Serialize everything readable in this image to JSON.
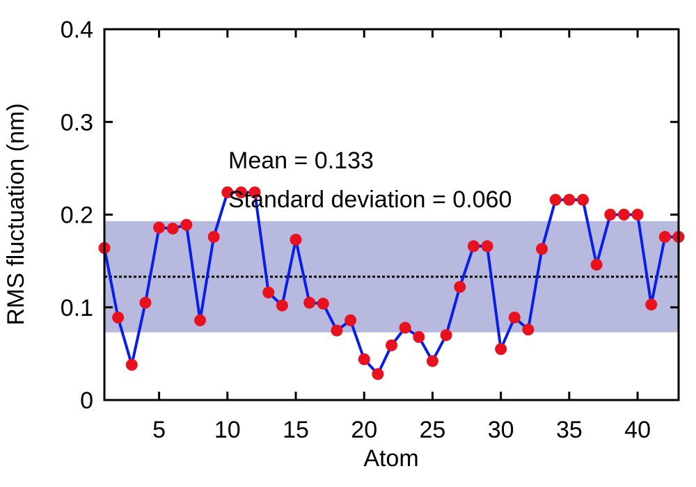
{
  "chart_data": {
    "type": "line",
    "title": "",
    "xlabel": "Atom",
    "ylabel": "RMS fluctuation (nm)",
    "xlim": [
      1,
      43
    ],
    "ylim": [
      0,
      0.4
    ],
    "x_ticks": [
      5,
      10,
      15,
      20,
      25,
      30,
      35,
      40
    ],
    "y_ticks": [
      0,
      0.1,
      0.2,
      0.3,
      0.4
    ],
    "y_tick_labels": [
      "0",
      "0.1",
      "0.2",
      "0.3",
      "0.4"
    ],
    "grid": false,
    "annotations": [
      "Mean = 0.133",
      "Standard deviation = 0.060"
    ],
    "mean": 0.133,
    "std_band": [
      0.073,
      0.193
    ],
    "series": [
      {
        "x": [
          1,
          2,
          3,
          4,
          5,
          6,
          7,
          8,
          9,
          10,
          11,
          12,
          13,
          14,
          15,
          16,
          17,
          18,
          19,
          20,
          21,
          22,
          23,
          24,
          25,
          26,
          27,
          28,
          29,
          30,
          31,
          32,
          33,
          34,
          35,
          36,
          37,
          38,
          39,
          40,
          41,
          42,
          43
        ],
        "values": [
          0.164,
          0.089,
          0.038,
          0.105,
          0.186,
          0.185,
          0.189,
          0.086,
          0.176,
          0.224,
          0.224,
          0.224,
          0.116,
          0.102,
          0.173,
          0.105,
          0.104,
          0.075,
          0.086,
          0.044,
          0.028,
          0.059,
          0.078,
          0.068,
          0.042,
          0.07,
          0.122,
          0.166,
          0.166,
          0.055,
          0.089,
          0.076,
          0.163,
          0.216,
          0.216,
          0.216,
          0.146,
          0.2,
          0.2,
          0.2,
          0.103,
          0.176,
          0.176
        ]
      }
    ],
    "colors": {
      "line": "#0a1fe6",
      "marker": "#e8121e",
      "band": "#b7b9de",
      "mean_line": "#000000"
    }
  }
}
